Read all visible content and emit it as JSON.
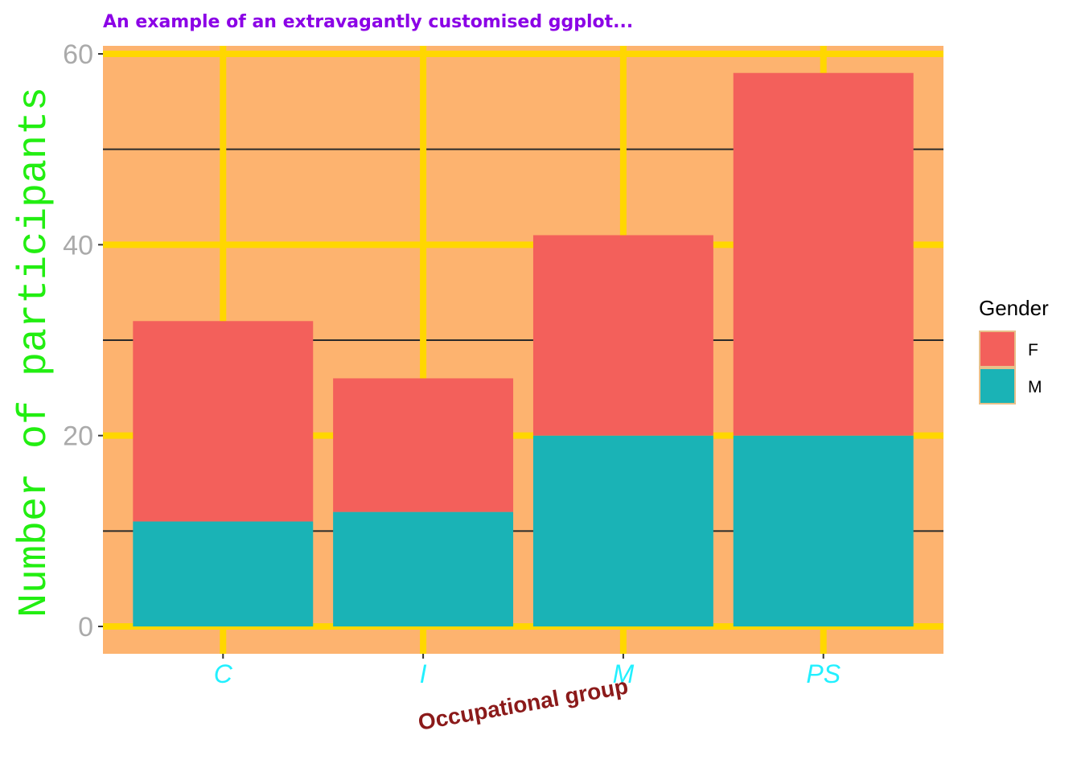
{
  "chart_data": {
    "type": "bar",
    "stacked": true,
    "title": "An example of an extravagantly customised ggplot...",
    "xlabel": "Occupational group",
    "ylabel": "Number of participants",
    "categories": [
      "C",
      "I",
      "M",
      "PS"
    ],
    "series": [
      {
        "name": "M",
        "values": [
          11,
          12,
          20,
          20
        ]
      },
      {
        "name": "F",
        "values": [
          21,
          14,
          21,
          38
        ]
      }
    ],
    "ylim": [
      -3,
      60.5
    ],
    "yticks": [
      0,
      20,
      40,
      60
    ],
    "ytick_labels": [
      "0",
      "20",
      "40",
      "60"
    ],
    "minor_yticks": [
      10,
      30,
      50
    ],
    "grid": true,
    "legend": {
      "title": "Gender",
      "position": "right",
      "order": [
        "F",
        "M"
      ]
    },
    "colors": {
      "F": "#f3605b",
      "M": "#1ab3b6",
      "panel_background": "#fdb36f",
      "major_grid": "#ffd700",
      "minor_grid": "#2a2a2a",
      "title": "#8b00e6",
      "xlabel": "#8b1a1a",
      "ylabel": "#22ee11",
      "xtick": "#22f0ff",
      "ytick": "#aaaaaa",
      "legend_border": "#e8c08a"
    }
  }
}
